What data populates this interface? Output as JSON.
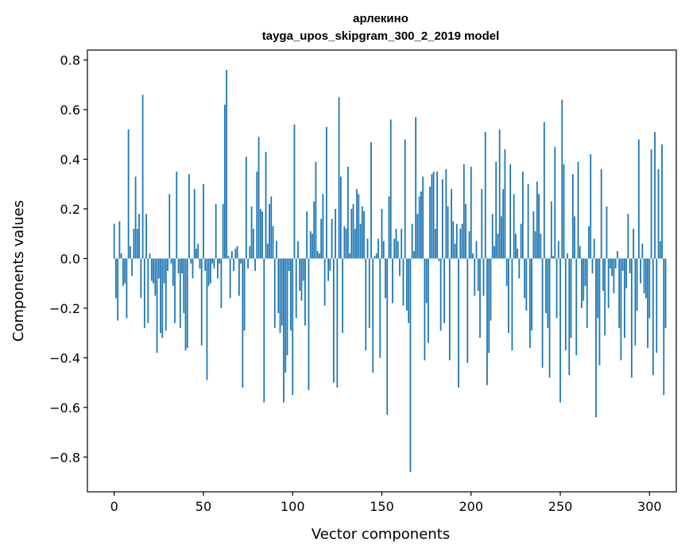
{
  "chart_data": {
    "type": "bar",
    "title": "арлекино",
    "subtitle": "tayga_upos_skipgram_300_2_2019 model",
    "xlabel": "Vector components",
    "ylabel": "Components values",
    "xlim": [
      -15,
      315
    ],
    "ylim": [
      -0.94,
      0.84
    ],
    "xticks": [
      0,
      50,
      100,
      150,
      200,
      250,
      300
    ],
    "xtick_labels": [
      "0",
      "50",
      "100",
      "150",
      "200",
      "250",
      "300"
    ],
    "yticks": [
      0.8,
      0.6,
      0.4,
      0.2,
      0.0,
      -0.2,
      -0.4,
      -0.6,
      -0.8
    ],
    "ytick_labels": [
      "0.8",
      "0.6",
      "0.4",
      "0.2",
      "0.0",
      "−0.2",
      "−0.4",
      "−0.6",
      "−0.8"
    ],
    "bar_color": "#1f77b4",
    "grid": false,
    "x_start": 0,
    "values": [
      0.14,
      -0.16,
      -0.25,
      0.15,
      0.02,
      -0.11,
      -0.1,
      -0.24,
      0.52,
      0.05,
      -0.07,
      0.12,
      0.33,
      0.12,
      0.18,
      -0.16,
      0.66,
      -0.28,
      0.18,
      -0.26,
      0.02,
      -0.09,
      -0.1,
      -0.15,
      -0.38,
      -0.08,
      -0.3,
      -0.32,
      -0.1,
      -0.29,
      -0.05,
      0.26,
      -0.02,
      -0.11,
      -0.26,
      0.35,
      -0.06,
      -0.28,
      -0.06,
      -0.22,
      -0.37,
      -0.36,
      0.34,
      -0.02,
      -0.08,
      0.28,
      0.04,
      0.06,
      -0.04,
      -0.35,
      0.3,
      -0.05,
      -0.49,
      -0.11,
      -0.1,
      -0.02,
      -0.04,
      0.22,
      -0.08,
      -0.02,
      -0.2,
      0.22,
      0.62,
      0.76,
      0.01,
      -0.16,
      0.03,
      -0.05,
      0.04,
      0.05,
      -0.15,
      -0.02,
      -0.52,
      -0.29,
      0.41,
      -0.04,
      0.05,
      0.21,
      0.12,
      -0.05,
      0.35,
      0.49,
      0.2,
      0.19,
      -0.58,
      0.43,
      0.06,
      0.22,
      0.25,
      0.13,
      -0.28,
      0.07,
      -0.22,
      -0.3,
      -0.27,
      -0.58,
      -0.46,
      -0.39,
      -0.05,
      -0.29,
      -0.55,
      0.54,
      -0.24,
      0.07,
      -0.13,
      -0.17,
      -0.09,
      -0.27,
      0.19,
      -0.53,
      0.11,
      0.1,
      0.23,
      0.39,
      0.03,
      0.02,
      0.16,
      0.26,
      -0.19,
      0.53,
      -0.09,
      -0.05,
      0.16,
      -0.5,
      0.2,
      -0.52,
      0.65,
      0.33,
      -0.3,
      0.13,
      0.12,
      0.37,
      0.02,
      0.2,
      0.22,
      0.12,
      0.28,
      0.26,
      0.14,
      0.21,
      0.19,
      -0.37,
      0.08,
      -0.28,
      0.47,
      -0.46,
      0.01,
      0.02,
      0.08,
      -0.4,
      0.2,
      0.07,
      -0.16,
      -0.63,
      0.25,
      0.56,
      -0.18,
      0.08,
      0.12,
      0.07,
      -0.07,
      0.12,
      -0.19,
      0.48,
      -0.21,
      -0.26,
      -0.86,
      0.14,
      0.03,
      0.57,
      0.18,
      0.25,
      0.27,
      0.33,
      -0.41,
      -0.18,
      -0.34,
      0.29,
      0.34,
      0.35,
      0.12,
      0.35,
      -0.01,
      -0.29,
      0.32,
      -0.26,
      0.36,
      0.21,
      -0.41,
      0.28,
      0.15,
      0.06,
      0.14,
      -0.52,
      0.12,
      0.14,
      0.38,
      0.22,
      -0.42,
      0.11,
      0.37,
      0.02,
      -0.15,
      0.07,
      -0.13,
      -0.32,
      0.28,
      -0.15,
      0.51,
      -0.51,
      -0.38,
      -0.25,
      0.18,
      0.05,
      0.39,
      0.1,
      0.52,
      0.17,
      0.28,
      0.44,
      -0.11,
      -0.3,
      0.38,
      -0.37,
      0.26,
      0.1,
      0.04,
      -0.08,
      0.14,
      0.35,
      -0.16,
      -0.21,
      0.3,
      -0.36,
      -0.29,
      0.19,
      0.11,
      0.31,
      0.26,
      0.1,
      -0.44,
      0.55,
      -0.22,
      -0.28,
      -0.48,
      0.23,
      0.01,
      0.45,
      -0.24,
      0.07,
      -0.58,
      0.64,
      0.38,
      -0.37,
      0.02,
      -0.47,
      -0.32,
      0.34,
      0.17,
      -0.39,
      0.39,
      0.05,
      -0.2,
      -0.17,
      -0.11,
      -0.28,
      0.13,
      0.42,
      -0.06,
      0.08,
      -0.64,
      -0.24,
      -0.43,
      0.36,
      -0.13,
      -0.31,
      0.21,
      -0.2,
      -0.04,
      -0.07,
      -0.14,
      -0.04,
      0.03,
      -0.28,
      -0.41,
      -0.05,
      -0.32,
      -0.12,
      0.18,
      -0.06,
      -0.48,
      0.12,
      -0.35,
      -0.21,
      0.48,
      -0.1,
      0.06,
      -0.14,
      -0.16,
      -0.36,
      -0.24,
      0.44,
      -0.47,
      0.51,
      -0.38,
      0.36,
      0.07,
      0.46,
      -0.55,
      -0.28
    ]
  }
}
